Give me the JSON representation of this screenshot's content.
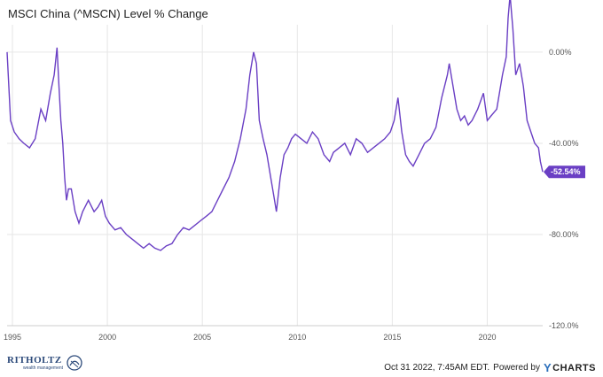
{
  "title": "MSCI China (^MSCN) Level % Change",
  "footer": {
    "timestamp": "Oct 31 2022, 7:45AM EDT.",
    "powered_by": "Powered by",
    "brand": "CHARTS",
    "brand_y": "Y"
  },
  "logo": {
    "name": "RITHOLTZ",
    "sub": "wealth management"
  },
  "colors": {
    "line": "#6a3fc4",
    "grid": "#e6e6e6",
    "label_bg": "#6a3fc4"
  },
  "chart_data": {
    "type": "line",
    "title": "MSCI China (^MSCN) Level % Change",
    "xlabel": "",
    "ylabel": "",
    "xlim": [
      1994.72,
      2022.92
    ],
    "ylim": [
      -120,
      12
    ],
    "x_ticks": [
      1995,
      2000,
      2005,
      2010,
      2015,
      2020
    ],
    "x_tick_labels": [
      "1995",
      "2000",
      "2005",
      "2010",
      "2015",
      "2020"
    ],
    "y_ticks": [
      0,
      -40,
      -80,
      -120
    ],
    "y_tick_labels": [
      "0.00%",
      "-40.00%",
      "-80.00%",
      "-120.0%"
    ],
    "grid": true,
    "last_value_label": "-52.54%",
    "series": [
      {
        "x": [
          1994.72,
          1994.9,
          1995.1,
          1995.35,
          1995.6,
          1995.9,
          1996.2,
          1996.5,
          1996.75,
          1997.0,
          1997.2,
          1997.35,
          1997.45,
          1997.55,
          1997.65,
          1997.75,
          1997.85,
          1997.95,
          1998.1,
          1998.3,
          1998.5,
          1998.7,
          1999.0,
          1999.3,
          1999.5,
          1999.7,
          1999.9,
          2000.1,
          2000.4,
          2000.7,
          2001.0,
          2001.3,
          2001.6,
          2001.9,
          2002.2,
          2002.5,
          2002.8,
          2003.1,
          2003.4,
          2003.7,
          2004.0,
          2004.3,
          2004.6,
          2004.9,
          2005.2,
          2005.5,
          2005.8,
          2006.1,
          2006.4,
          2006.7,
          2007.0,
          2007.3,
          2007.5,
          2007.7,
          2007.85,
          2008.0,
          2008.2,
          2008.4,
          2008.6,
          2008.8,
          2008.9,
          2009.1,
          2009.3,
          2009.5,
          2009.7,
          2009.9,
          2010.2,
          2010.5,
          2010.8,
          2011.1,
          2011.4,
          2011.7,
          2011.9,
          2012.2,
          2012.5,
          2012.8,
          2013.1,
          2013.4,
          2013.7,
          2014.0,
          2014.3,
          2014.6,
          2014.9,
          2015.1,
          2015.3,
          2015.5,
          2015.7,
          2015.9,
          2016.1,
          2016.4,
          2016.7,
          2017.0,
          2017.3,
          2017.6,
          2017.9,
          2018.0,
          2018.2,
          2018.4,
          2018.6,
          2018.8,
          2019.0,
          2019.2,
          2019.5,
          2019.8,
          2020.0,
          2020.2,
          2020.5,
          2020.8,
          2021.0,
          2021.1,
          2021.2,
          2021.35,
          2021.5,
          2021.7,
          2021.9,
          2022.1,
          2022.3,
          2022.5,
          2022.7,
          2022.8,
          2022.92
        ],
        "y": [
          0,
          -30,
          -35,
          -38,
          -40,
          -42,
          -38,
          -25,
          -30,
          -18,
          -10,
          2,
          -15,
          -30,
          -40,
          -55,
          -65,
          -60,
          -60,
          -70,
          -75,
          -70,
          -65,
          -70,
          -68,
          -65,
          -72,
          -75,
          -78,
          -77,
          -80,
          -82,
          -84,
          -86,
          -84,
          -86,
          -87,
          -85,
          -84,
          -80,
          -77,
          -78,
          -76,
          -74,
          -72,
          -70,
          -65,
          -60,
          -55,
          -48,
          -38,
          -25,
          -10,
          0,
          -5,
          -30,
          -38,
          -45,
          -55,
          -65,
          -70,
          -55,
          -45,
          -42,
          -38,
          -36,
          -38,
          -40,
          -35,
          -38,
          -45,
          -48,
          -44,
          -42,
          -40,
          -45,
          -38,
          -40,
          -44,
          -42,
          -40,
          -38,
          -35,
          -30,
          -20,
          -35,
          -45,
          -48,
          -50,
          -45,
          -40,
          -38,
          -33,
          -20,
          -10,
          -5,
          -15,
          -25,
          -30,
          -28,
          -32,
          -30,
          -25,
          -18,
          -30,
          -28,
          -25,
          -10,
          -2,
          15,
          25,
          10,
          -10,
          -5,
          -15,
          -30,
          -35,
          -40,
          -42,
          -48,
          -52.54
        ]
      }
    ]
  }
}
